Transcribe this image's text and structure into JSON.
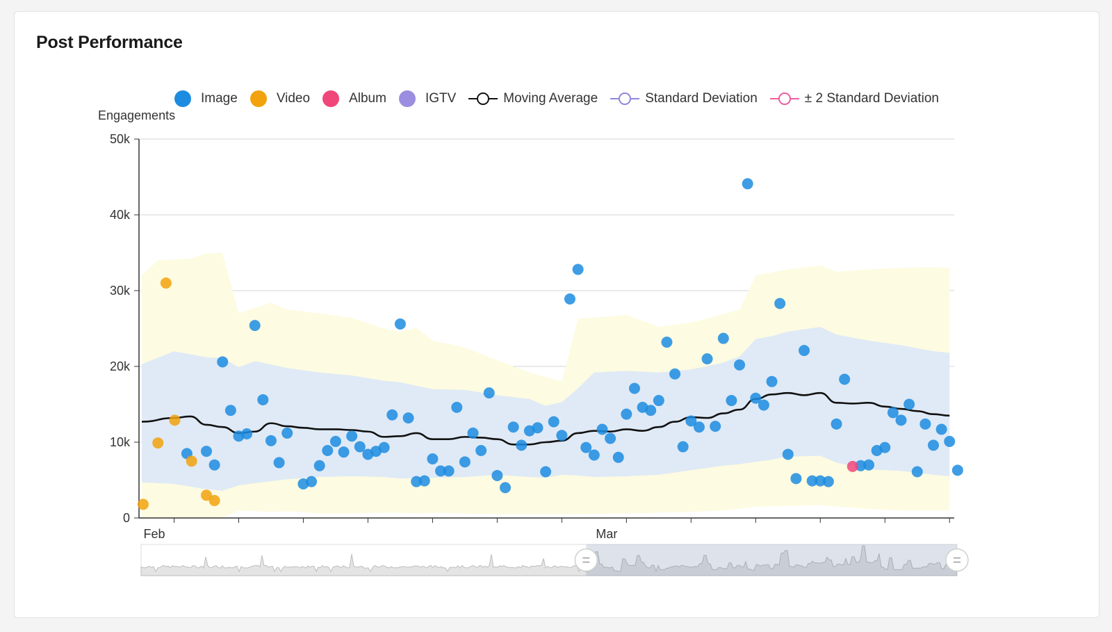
{
  "card": {
    "title": "Post Performance"
  },
  "legend": [
    {
      "label": "Image",
      "kind": "dot",
      "color": "#1d8ce0"
    },
    {
      "label": "Video",
      "kind": "dot",
      "color": "#f2a20d"
    },
    {
      "label": "Album",
      "kind": "dot",
      "color": "#f0467a"
    },
    {
      "label": "IGTV",
      "kind": "dot",
      "color": "#9b8ee0"
    },
    {
      "label": "Moving Average",
      "kind": "line",
      "color": "#111111"
    },
    {
      "label": "Standard Deviation",
      "kind": "line",
      "color": "#8f86dc"
    },
    {
      "label": "± 2 Standard Deviation",
      "kind": "line",
      "color": "#ef5ca0"
    }
  ],
  "chart_data": {
    "type": "scatter",
    "ylabel": "Engagements",
    "ylim": [
      0,
      50000
    ],
    "y_ticks": [
      {
        "value": 0,
        "label": "0"
      },
      {
        "value": 10000,
        "label": "10k"
      },
      {
        "value": 20000,
        "label": "20k"
      },
      {
        "value": 30000,
        "label": "30k"
      },
      {
        "value": 40000,
        "label": "40k"
      },
      {
        "value": 50000,
        "label": "50k"
      }
    ],
    "xlim": [
      "2019-01-30",
      "2019-03-20"
    ],
    "x_labels": [
      {
        "date": "2019-02-01",
        "label": "Feb"
      },
      {
        "date": "2019-03-01",
        "label": "Mar"
      }
    ],
    "grid": true,
    "legend_position": "top",
    "series": [
      {
        "name": "Image",
        "color": "#1d8ce0",
        "points": [
          [
            "2019-02-01T19:00",
            8500
          ],
          [
            "2019-02-03T00:00",
            8800
          ],
          [
            "2019-02-03T12:00",
            7000
          ],
          [
            "2019-02-04T00:00",
            20600
          ],
          [
            "2019-02-04T12:00",
            14200
          ],
          [
            "2019-02-05T00:00",
            10800
          ],
          [
            "2019-02-05T12:00",
            11100
          ],
          [
            "2019-02-06T00:00",
            25400
          ],
          [
            "2019-02-06T12:00",
            15600
          ],
          [
            "2019-02-07T00:00",
            10200
          ],
          [
            "2019-02-07T12:00",
            7300
          ],
          [
            "2019-02-08T00:00",
            11200
          ],
          [
            "2019-02-09T00:00",
            4500
          ],
          [
            "2019-02-09T12:00",
            4800
          ],
          [
            "2019-02-10T00:00",
            6900
          ],
          [
            "2019-02-10T12:00",
            8900
          ],
          [
            "2019-02-11T00:00",
            10100
          ],
          [
            "2019-02-11T12:00",
            8700
          ],
          [
            "2019-02-12T00:00",
            10800
          ],
          [
            "2019-02-12T12:00",
            9400
          ],
          [
            "2019-02-13T00:00",
            8400
          ],
          [
            "2019-02-13T12:00",
            8800
          ],
          [
            "2019-02-14T00:00",
            9300
          ],
          [
            "2019-02-14T12:00",
            13600
          ],
          [
            "2019-02-15T00:00",
            25600
          ],
          [
            "2019-02-15T12:00",
            13200
          ],
          [
            "2019-02-16T00:00",
            4800
          ],
          [
            "2019-02-16T12:00",
            4900
          ],
          [
            "2019-02-17T00:00",
            7800
          ],
          [
            "2019-02-17T12:00",
            6200
          ],
          [
            "2019-02-18T00:00",
            6200
          ],
          [
            "2019-02-18T12:00",
            14600
          ],
          [
            "2019-02-19T00:00",
            7400
          ],
          [
            "2019-02-19T12:00",
            11200
          ],
          [
            "2019-02-20T00:00",
            8900
          ],
          [
            "2019-02-20T12:00",
            16500
          ],
          [
            "2019-02-21T00:00",
            5600
          ],
          [
            "2019-02-21T12:00",
            4000
          ],
          [
            "2019-02-22T00:00",
            12000
          ],
          [
            "2019-02-22T12:00",
            9600
          ],
          [
            "2019-02-23T00:00",
            11500
          ],
          [
            "2019-02-23T12:00",
            11900
          ],
          [
            "2019-02-24T00:00",
            6100
          ],
          [
            "2019-02-24T12:00",
            12700
          ],
          [
            "2019-02-25T00:00",
            10900
          ],
          [
            "2019-02-25T12:00",
            28900
          ],
          [
            "2019-02-26T00:00",
            32800
          ],
          [
            "2019-02-26T12:00",
            9300
          ],
          [
            "2019-02-27T00:00",
            8300
          ],
          [
            "2019-02-27T12:00",
            11700
          ],
          [
            "2019-02-28T00:00",
            10500
          ],
          [
            "2019-02-28T12:00",
            8000
          ],
          [
            "2019-03-01T00:00",
            13700
          ],
          [
            "2019-03-01T12:00",
            17100
          ],
          [
            "2019-03-02T00:00",
            14600
          ],
          [
            "2019-03-02T12:00",
            14200
          ],
          [
            "2019-03-03T00:00",
            15500
          ],
          [
            "2019-03-03T12:00",
            23200
          ],
          [
            "2019-03-04T00:00",
            19000
          ],
          [
            "2019-03-04T12:00",
            9400
          ],
          [
            "2019-03-05T00:00",
            12800
          ],
          [
            "2019-03-05T12:00",
            12000
          ],
          [
            "2019-03-06T00:00",
            21000
          ],
          [
            "2019-03-06T12:00",
            12100
          ],
          [
            "2019-03-07T00:00",
            23700
          ],
          [
            "2019-03-07T12:00",
            15500
          ],
          [
            "2019-03-08T00:00",
            20200
          ],
          [
            "2019-03-08T12:00",
            44100
          ],
          [
            "2019-03-09T00:00",
            15800
          ],
          [
            "2019-03-09T12:00",
            14900
          ],
          [
            "2019-03-10T00:00",
            18000
          ],
          [
            "2019-03-10T12:00",
            28300
          ],
          [
            "2019-03-11T00:00",
            8400
          ],
          [
            "2019-03-11T12:00",
            5200
          ],
          [
            "2019-03-12T00:00",
            22100
          ],
          [
            "2019-03-12T12:00",
            4900
          ],
          [
            "2019-03-13T00:00",
            4900
          ],
          [
            "2019-03-13T12:00",
            4800
          ],
          [
            "2019-03-14T00:00",
            12400
          ],
          [
            "2019-03-14T12:00",
            18300
          ],
          [
            "2019-03-15T12:00",
            6900
          ],
          [
            "2019-03-16T00:00",
            7000
          ],
          [
            "2019-03-16T12:00",
            8900
          ],
          [
            "2019-03-17T00:00",
            9300
          ],
          [
            "2019-03-17T12:00",
            13900
          ],
          [
            "2019-03-18T00:00",
            12900
          ],
          [
            "2019-03-18T12:00",
            15000
          ],
          [
            "2019-03-19T00:00",
            6100
          ],
          [
            "2019-03-19T12:00",
            12400
          ],
          [
            "2019-03-20T00:00",
            9600
          ],
          [
            "2019-03-20T12:00",
            11700
          ],
          [
            "2019-03-21T00:00",
            10100
          ],
          [
            "2019-03-21T12:00",
            6300
          ]
        ]
      },
      {
        "name": "Video",
        "color": "#f2a20d",
        "points": [
          [
            "2019-01-30T02:00",
            1800
          ],
          [
            "2019-01-31T00:00",
            9900
          ],
          [
            "2019-01-31T12:00",
            31000
          ],
          [
            "2019-02-01T01:00",
            12900
          ],
          [
            "2019-02-02T02:00",
            7500
          ],
          [
            "2019-02-03T00:00",
            3000
          ],
          [
            "2019-02-03T12:00",
            2300
          ]
        ]
      },
      {
        "name": "Album",
        "color": "#f0467a",
        "points": [
          [
            "2019-03-15T00:00",
            6800
          ]
        ]
      },
      {
        "name": "IGTV",
        "color": "#9b8ee0",
        "points": []
      }
    ],
    "moving_average": {
      "color": "#111111",
      "points": [
        [
          "2019-01-30",
          12700
        ],
        [
          "2019-02-01",
          13200
        ],
        [
          "2019-02-02",
          13400
        ],
        [
          "2019-02-03",
          12300
        ],
        [
          "2019-02-04",
          12000
        ],
        [
          "2019-02-05",
          11200
        ],
        [
          "2019-02-06",
          11400
        ],
        [
          "2019-02-07",
          12500
        ],
        [
          "2019-02-08",
          12100
        ],
        [
          "2019-02-09",
          11900
        ],
        [
          "2019-02-10",
          11700
        ],
        [
          "2019-02-11",
          11700
        ],
        [
          "2019-02-12",
          11600
        ],
        [
          "2019-02-13",
          11400
        ],
        [
          "2019-02-14",
          10700
        ],
        [
          "2019-02-15",
          10800
        ],
        [
          "2019-02-16",
          11200
        ],
        [
          "2019-02-17",
          10400
        ],
        [
          "2019-02-18",
          10400
        ],
        [
          "2019-02-19",
          10700
        ],
        [
          "2019-02-20",
          10600
        ],
        [
          "2019-02-21",
          10400
        ],
        [
          "2019-02-22",
          9700
        ],
        [
          "2019-02-23",
          9700
        ],
        [
          "2019-02-24",
          10000
        ],
        [
          "2019-02-25",
          10200
        ],
        [
          "2019-02-26",
          11200
        ],
        [
          "2019-02-27",
          11500
        ],
        [
          "2019-02-28",
          11400
        ],
        [
          "2019-03-01",
          11700
        ],
        [
          "2019-03-02",
          11500
        ],
        [
          "2019-03-03",
          12000
        ],
        [
          "2019-03-04",
          12700
        ],
        [
          "2019-03-05",
          13300
        ],
        [
          "2019-03-06",
          13200
        ],
        [
          "2019-03-07",
          13800
        ],
        [
          "2019-03-08",
          14300
        ],
        [
          "2019-03-09",
          15700
        ],
        [
          "2019-03-10",
          16300
        ],
        [
          "2019-03-11",
          16500
        ],
        [
          "2019-03-12",
          16200
        ],
        [
          "2019-03-13",
          16500
        ],
        [
          "2019-03-14",
          15200
        ],
        [
          "2019-03-15",
          15100
        ],
        [
          "2019-03-16",
          15200
        ],
        [
          "2019-03-17",
          14700
        ],
        [
          "2019-03-18",
          14400
        ],
        [
          "2019-03-19",
          14100
        ],
        [
          "2019-03-20",
          13700
        ],
        [
          "2019-03-21",
          13500
        ]
      ]
    },
    "std_band": {
      "color": "#dfeaf6",
      "points": [
        [
          "2019-01-30",
          4700,
          20300
        ],
        [
          "2019-02-01",
          4500,
          22000
        ],
        [
          "2019-02-03",
          3800,
          21200
        ],
        [
          "2019-02-04",
          3600,
          21100
        ],
        [
          "2019-02-05",
          4300,
          19900
        ],
        [
          "2019-02-06",
          4600,
          20700
        ],
        [
          "2019-02-08",
          5100,
          19800
        ],
        [
          "2019-02-10",
          5400,
          19200
        ],
        [
          "2019-02-12",
          5500,
          18800
        ],
        [
          "2019-02-14",
          5400,
          18100
        ],
        [
          "2019-02-15",
          5200,
          17900
        ],
        [
          "2019-02-17",
          5300,
          17000
        ],
        [
          "2019-02-19",
          5400,
          16900
        ],
        [
          "2019-02-21",
          5700,
          16200
        ],
        [
          "2019-02-23",
          5400,
          15700
        ],
        [
          "2019-02-24",
          5300,
          14800
        ],
        [
          "2019-02-25",
          5700,
          15300
        ],
        [
          "2019-02-26",
          5600,
          17100
        ],
        [
          "2019-02-27",
          5400,
          19200
        ],
        [
          "2019-03-01",
          5500,
          19400
        ],
        [
          "2019-03-03",
          5700,
          19200
        ],
        [
          "2019-03-05",
          6300,
          19600
        ],
        [
          "2019-03-07",
          6900,
          20500
        ],
        [
          "2019-03-08",
          7100,
          21300
        ],
        [
          "2019-03-09",
          7400,
          23600
        ],
        [
          "2019-03-10",
          7700,
          24000
        ],
        [
          "2019-03-11",
          8100,
          24600
        ],
        [
          "2019-03-13",
          8200,
          25200
        ],
        [
          "2019-03-14",
          7300,
          24200
        ],
        [
          "2019-03-16",
          6400,
          23400
        ],
        [
          "2019-03-18",
          6200,
          22800
        ],
        [
          "2019-03-20",
          5700,
          22000
        ],
        [
          "2019-03-21",
          5500,
          21800
        ]
      ]
    },
    "std2_band": {
      "color": "#fdfbe1",
      "points": [
        [
          "2019-01-30",
          0,
          32000
        ],
        [
          "2019-01-31",
          0,
          34000
        ],
        [
          "2019-02-02",
          0,
          34200
        ],
        [
          "2019-02-03",
          0,
          34900
        ],
        [
          "2019-02-04",
          0,
          35000
        ],
        [
          "2019-02-05",
          1000,
          27000
        ],
        [
          "2019-02-07",
          800,
          28400
        ],
        [
          "2019-02-08",
          900,
          27500
        ],
        [
          "2019-02-10",
          600,
          27000
        ],
        [
          "2019-02-12",
          600,
          26400
        ],
        [
          "2019-02-14",
          700,
          25000
        ],
        [
          "2019-02-15",
          700,
          24500
        ],
        [
          "2019-02-16",
          600,
          25100
        ],
        [
          "2019-02-17",
          700,
          23400
        ],
        [
          "2019-02-19",
          600,
          22500
        ],
        [
          "2019-02-21",
          500,
          20800
        ],
        [
          "2019-02-23",
          500,
          19200
        ],
        [
          "2019-02-25",
          500,
          18000
        ],
        [
          "2019-02-26",
          500,
          26300
        ],
        [
          "2019-02-28",
          600,
          26600
        ],
        [
          "2019-03-01",
          600,
          26800
        ],
        [
          "2019-03-03",
          700,
          25200
        ],
        [
          "2019-03-05",
          800,
          25800
        ],
        [
          "2019-03-07",
          1000,
          26900
        ],
        [
          "2019-03-08",
          1200,
          27500
        ],
        [
          "2019-03-09",
          1500,
          32000
        ],
        [
          "2019-03-11",
          1600,
          32800
        ],
        [
          "2019-03-13",
          1700,
          33300
        ],
        [
          "2019-03-14",
          1500,
          32500
        ],
        [
          "2019-03-16",
          1200,
          32800
        ],
        [
          "2019-03-18",
          1000,
          33000
        ],
        [
          "2019-03-20",
          1000,
          33100
        ],
        [
          "2019-03-21",
          1000,
          33000
        ]
      ]
    },
    "range_selector": {
      "full_range": [
        "2018-12-01",
        "2019-03-21"
      ],
      "selected": [
        "2019-01-30",
        "2019-03-21"
      ]
    }
  }
}
